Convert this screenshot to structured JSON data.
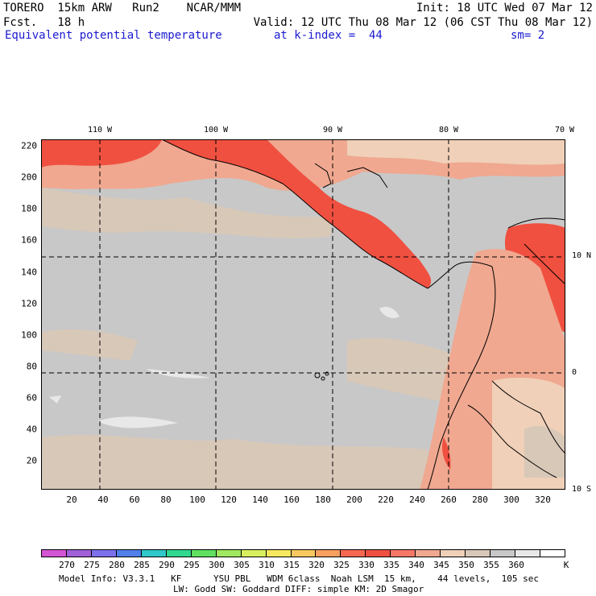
{
  "header": {
    "left1": "TORERO  15km ARW   Run2    NCAR/MMM",
    "left2": "Fcst.   18 h",
    "right1": "Init: 18 UTC Wed 07 Mar 12",
    "right2": "Valid: 12 UTC Thu 08 Mar 12 (06 CST Thu 08 Mar 12)",
    "field": "Equivalent potential temperature",
    "level": "at k-index =  44",
    "smooth": "sm= 2"
  },
  "map": {
    "lon_labels": [
      "110 W",
      "100 W",
      "90 W",
      "80 W",
      "70 W"
    ],
    "lat_labels": [
      "10 N",
      "0",
      "10 S"
    ],
    "y_ticks": [
      "220",
      "200",
      "180",
      "160",
      "140",
      "120",
      "100",
      "80",
      "60",
      "40",
      "20"
    ],
    "x_ticks": [
      "20",
      "40",
      "60",
      "80",
      "100",
      "120",
      "140",
      "160",
      "180",
      "200",
      "220",
      "240",
      "260",
      "280",
      "300",
      "320"
    ],
    "grid": true
  },
  "colorbar": {
    "unit": "K",
    "colors": [
      "#d455d4",
      "#a060d8",
      "#7c70ec",
      "#5080e8",
      "#30c8c8",
      "#30d890",
      "#60e060",
      "#a0e860",
      "#d8f060",
      "#f8e860",
      "#f8c860",
      "#f8a060",
      "#f86850",
      "#f05040",
      "#f87868",
      "#f0a890",
      "#f0d0b8",
      "#d8c8b8",
      "#c8c8c8",
      "#e8e8e8",
      "#ffffff"
    ],
    "labels": [
      "270",
      "275",
      "280",
      "285",
      "290",
      "295",
      "300",
      "305",
      "310",
      "315",
      "320",
      "325",
      "330",
      "335",
      "340",
      "345",
      "350",
      "355",
      "360"
    ]
  },
  "footer": {
    "line1": "Model Info: V3.3.1   KF      YSU PBL   WDM 6class  Noah LSM  15 km,    44 levels,  105 sec",
    "line2": "LW: Godd SW: Goddard DIFF: simple KM: 2D Smagor"
  }
}
